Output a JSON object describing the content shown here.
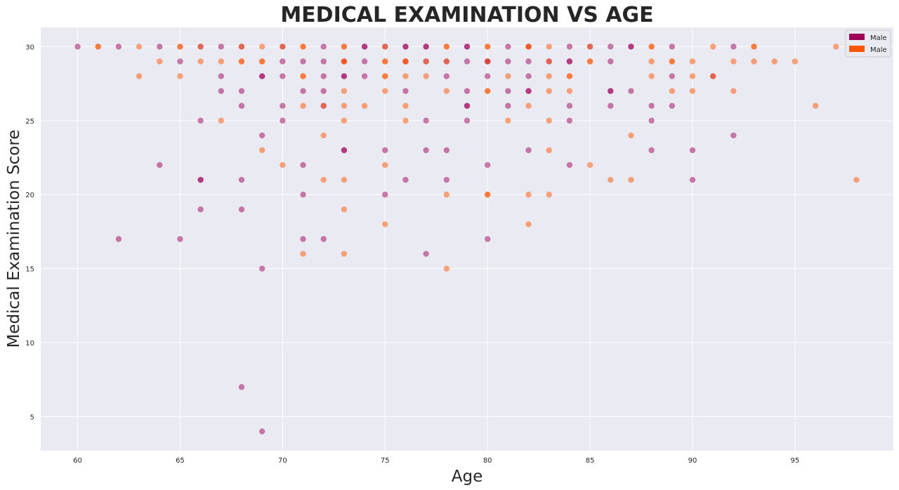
{
  "chart_data": {
    "type": "scatter",
    "title": "MEDICAL EXAMINATION VS AGE",
    "xlabel": "Age",
    "ylabel": "Medical Examination Score",
    "xlim": [
      58.2,
      99.8
    ],
    "ylim": [
      2.7,
      31.3
    ],
    "xticks": [
      60,
      65,
      70,
      75,
      80,
      85,
      90,
      95
    ],
    "yticks": [
      5,
      10,
      15,
      20,
      25,
      30
    ],
    "grid": true,
    "legend_position": "top-right",
    "colors": {
      "background": "#EAEAF2",
      "grid": "#FFFFFF",
      "series_0": "#9E0059",
      "series_1": "#FF5400"
    },
    "series": [
      {
        "name": "Male",
        "color": "#9E0059",
        "points": [
          [
            60,
            30
          ],
          [
            62,
            30
          ],
          [
            62,
            17
          ],
          [
            64,
            30
          ],
          [
            64,
            22
          ],
          [
            65,
            29
          ],
          [
            65,
            17
          ],
          [
            66,
            30
          ],
          [
            66,
            25
          ],
          [
            66,
            21
          ],
          [
            66,
            21
          ],
          [
            66,
            19
          ],
          [
            67,
            30
          ],
          [
            67,
            28
          ],
          [
            67,
            27
          ],
          [
            68,
            30
          ],
          [
            68,
            27
          ],
          [
            68,
            26
          ],
          [
            68,
            21
          ],
          [
            68,
            19
          ],
          [
            68,
            7
          ],
          [
            69,
            28
          ],
          [
            69,
            28
          ],
          [
            69,
            24
          ],
          [
            69,
            15
          ],
          [
            69,
            4
          ],
          [
            70,
            30
          ],
          [
            70,
            29
          ],
          [
            70,
            28
          ],
          [
            70,
            26
          ],
          [
            70,
            25
          ],
          [
            71,
            29
          ],
          [
            71,
            27
          ],
          [
            71,
            22
          ],
          [
            71,
            20
          ],
          [
            71,
            17
          ],
          [
            72,
            30
          ],
          [
            72,
            29
          ],
          [
            72,
            28
          ],
          [
            72,
            27
          ],
          [
            72,
            26
          ],
          [
            72,
            17
          ],
          [
            73,
            29
          ],
          [
            73,
            28
          ],
          [
            73,
            28
          ],
          [
            73,
            23
          ],
          [
            73,
            23
          ],
          [
            74,
            30
          ],
          [
            74,
            30
          ],
          [
            74,
            29
          ],
          [
            74,
            28
          ],
          [
            75,
            30
          ],
          [
            75,
            23
          ],
          [
            75,
            20
          ],
          [
            76,
            30
          ],
          [
            76,
            30
          ],
          [
            76,
            29
          ],
          [
            76,
            27
          ],
          [
            76,
            21
          ],
          [
            77,
            30
          ],
          [
            77,
            30
          ],
          [
            77,
            29
          ],
          [
            77,
            25
          ],
          [
            77,
            23
          ],
          [
            77,
            16
          ],
          [
            78,
            29
          ],
          [
            78,
            28
          ],
          [
            78,
            23
          ],
          [
            78,
            21
          ],
          [
            79,
            30
          ],
          [
            79,
            30
          ],
          [
            79,
            29
          ],
          [
            79,
            27
          ],
          [
            79,
            26
          ],
          [
            79,
            26
          ],
          [
            79,
            25
          ],
          [
            80,
            29
          ],
          [
            80,
            29
          ],
          [
            80,
            28
          ],
          [
            80,
            22
          ],
          [
            80,
            17
          ],
          [
            81,
            30
          ],
          [
            81,
            29
          ],
          [
            81,
            27
          ],
          [
            81,
            26
          ],
          [
            82,
            30
          ],
          [
            82,
            29
          ],
          [
            82,
            28
          ],
          [
            82,
            27
          ],
          [
            82,
            27
          ],
          [
            82,
            23
          ],
          [
            83,
            29
          ],
          [
            84,
            30
          ],
          [
            84,
            29
          ],
          [
            84,
            29
          ],
          [
            84,
            26
          ],
          [
            84,
            25
          ],
          [
            84,
            22
          ],
          [
            85,
            30
          ],
          [
            86,
            30
          ],
          [
            86,
            29
          ],
          [
            86,
            27
          ],
          [
            86,
            27
          ],
          [
            86,
            26
          ],
          [
            87,
            30
          ],
          [
            87,
            30
          ],
          [
            87,
            27
          ],
          [
            88,
            26
          ],
          [
            88,
            25
          ],
          [
            88,
            23
          ],
          [
            89,
            30
          ],
          [
            89,
            28
          ],
          [
            89,
            26
          ],
          [
            90,
            23
          ],
          [
            90,
            21
          ],
          [
            91,
            28
          ],
          [
            92,
            30
          ],
          [
            92,
            24
          ]
        ]
      },
      {
        "name": "Male",
        "color": "#FF5400",
        "points": [
          [
            61,
            30
          ],
          [
            61,
            30
          ],
          [
            63,
            30
          ],
          [
            63,
            28
          ],
          [
            64,
            29
          ],
          [
            65,
            30
          ],
          [
            65,
            30
          ],
          [
            65,
            28
          ],
          [
            66,
            30
          ],
          [
            66,
            29
          ],
          [
            67,
            29
          ],
          [
            67,
            25
          ],
          [
            68,
            30
          ],
          [
            68,
            29
          ],
          [
            68,
            29
          ],
          [
            69,
            30
          ],
          [
            69,
            29
          ],
          [
            69,
            29
          ],
          [
            69,
            23
          ],
          [
            70,
            30
          ],
          [
            70,
            22
          ],
          [
            71,
            30
          ],
          [
            71,
            30
          ],
          [
            71,
            28
          ],
          [
            71,
            28
          ],
          [
            71,
            26
          ],
          [
            71,
            16
          ],
          [
            72,
            26
          ],
          [
            72,
            24
          ],
          [
            72,
            21
          ],
          [
            73,
            30
          ],
          [
            73,
            30
          ],
          [
            73,
            29
          ],
          [
            73,
            29
          ],
          [
            73,
            27
          ],
          [
            73,
            26
          ],
          [
            73,
            25
          ],
          [
            73,
            21
          ],
          [
            73,
            19
          ],
          [
            73,
            16
          ],
          [
            74,
            26
          ],
          [
            75,
            30
          ],
          [
            75,
            29
          ],
          [
            75,
            29
          ],
          [
            75,
            28
          ],
          [
            75,
            28
          ],
          [
            75,
            27
          ],
          [
            75,
            22
          ],
          [
            75,
            18
          ],
          [
            76,
            29
          ],
          [
            76,
            29
          ],
          [
            76,
            28
          ],
          [
            76,
            26
          ],
          [
            76,
            25
          ],
          [
            77,
            29
          ],
          [
            77,
            28
          ],
          [
            78,
            30
          ],
          [
            78,
            30
          ],
          [
            78,
            29
          ],
          [
            78,
            27
          ],
          [
            78,
            20
          ],
          [
            78,
            15
          ],
          [
            80,
            30
          ],
          [
            80,
            30
          ],
          [
            80,
            29
          ],
          [
            80,
            27
          ],
          [
            80,
            27
          ],
          [
            80,
            20
          ],
          [
            80,
            20
          ],
          [
            81,
            28
          ],
          [
            81,
            25
          ],
          [
            82,
            30
          ],
          [
            82,
            30
          ],
          [
            82,
            26
          ],
          [
            82,
            20
          ],
          [
            82,
            18
          ],
          [
            83,
            30
          ],
          [
            83,
            29
          ],
          [
            83,
            28
          ],
          [
            83,
            27
          ],
          [
            83,
            25
          ],
          [
            83,
            23
          ],
          [
            83,
            20
          ],
          [
            84,
            28
          ],
          [
            84,
            28
          ],
          [
            84,
            27
          ],
          [
            85,
            30
          ],
          [
            85,
            29
          ],
          [
            85,
            29
          ],
          [
            85,
            22
          ],
          [
            86,
            21
          ],
          [
            87,
            24
          ],
          [
            87,
            21
          ],
          [
            88,
            30
          ],
          [
            88,
            30
          ],
          [
            88,
            29
          ],
          [
            88,
            28
          ],
          [
            89,
            29
          ],
          [
            89,
            29
          ],
          [
            89,
            27
          ],
          [
            90,
            29
          ],
          [
            90,
            28
          ],
          [
            90,
            27
          ],
          [
            91,
            30
          ],
          [
            91,
            28
          ],
          [
            92,
            29
          ],
          [
            92,
            27
          ],
          [
            93,
            30
          ],
          [
            93,
            30
          ],
          [
            93,
            29
          ],
          [
            94,
            29
          ],
          [
            95,
            29
          ],
          [
            96,
            26
          ],
          [
            97,
            30
          ],
          [
            98,
            21
          ]
        ]
      }
    ]
  }
}
